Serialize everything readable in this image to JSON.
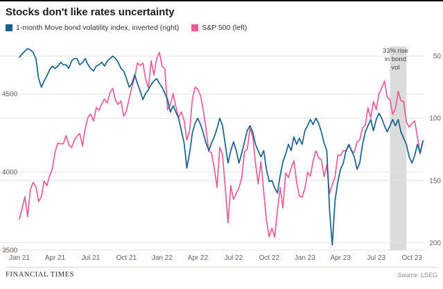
{
  "title": "Stocks don't like rates uncertainty",
  "legend": [
    {
      "label": "1-month Move bond volatility index, inverted (right)",
      "color": "#15608c"
    },
    {
      "label": "S&P 500 (left)",
      "color": "#e85d96"
    }
  ],
  "footer": {
    "brand": "FINANCIAL TIMES",
    "source": "Source: LSEG"
  },
  "chart_data": {
    "type": "line",
    "title": "Stocks don't like rates uncertainty",
    "x_tick_labels": [
      {
        "index": 0,
        "label": "Jan 21"
      },
      {
        "index": 13,
        "label": "Apr 21"
      },
      {
        "index": 26,
        "label": "Jul 21"
      },
      {
        "index": 39,
        "label": "Oct 21"
      },
      {
        "index": 52,
        "label": "Jan 22"
      },
      {
        "index": 65,
        "label": "Apr 22"
      },
      {
        "index": 78,
        "label": "Jul 22"
      },
      {
        "index": 91,
        "label": "Oct 22"
      },
      {
        "index": 104,
        "label": "Jan 23"
      },
      {
        "index": 117,
        "label": "Apr 23"
      },
      {
        "index": 130,
        "label": "Jul 23"
      },
      {
        "index": 143,
        "label": "Oct 23"
      }
    ],
    "left_axis": {
      "ticks": [
        4500,
        4000,
        3500
      ],
      "min": 3500,
      "max": 4790,
      "direction": "up",
      "label_for": "S&P 500"
    },
    "right_axis": {
      "ticks": [
        50,
        100,
        150,
        200
      ],
      "min": 44,
      "max": 206,
      "direction": "down",
      "label_for": "Move index (inverted)"
    },
    "band": {
      "start_index": 135,
      "end_index": 141,
      "color": "#dbdbdb"
    },
    "annotation": {
      "anchor_index": 137,
      "text_lines": [
        "33% rise",
        "in bond",
        "vol"
      ]
    },
    "grid": {
      "color": "#e2e2e2"
    },
    "series": [
      {
        "name": "1-month Move bond volatility index, inverted",
        "axis": "right_axis",
        "color": "#15608c",
        "values": [
          51,
          48,
          46,
          44,
          45,
          47,
          52,
          68,
          75,
          70,
          66,
          61,
          58,
          60,
          58,
          55,
          57,
          57,
          60,
          54,
          52,
          52,
          57,
          55,
          52,
          57,
          60,
          62,
          58,
          57,
          55,
          58,
          54,
          52,
          50,
          52,
          55,
          60,
          62,
          68,
          75,
          72,
          65,
          72,
          78,
          85,
          80,
          77,
          73,
          70,
          68,
          72,
          75,
          80,
          85,
          95,
          90,
          95,
          100,
          110,
          120,
          140,
          128,
          112,
          104,
          100,
          105,
          112,
          120,
          126,
          120,
          115,
          108,
          100,
          106,
          121,
          136,
          126,
          119,
          126,
          136,
          128,
          119,
          110,
          106,
          111,
          121,
          126,
          131,
          126,
          141,
          151,
          150,
          156,
          160,
          146,
          135,
          129,
          121,
          126,
          115,
          121,
          116,
          121,
          110,
          106,
          101,
          105,
          100,
          104,
          111,
          120,
          126,
          174,
          202,
          166,
          151,
          141,
          136,
          126,
          121,
          126,
          131,
          141,
          136,
          121,
          111,
          106,
          101,
          110,
          101,
          96,
          100,
          106,
          111,
          106,
          101,
          106,
          101,
          111,
          116,
          121,
          131,
          136,
          130,
          121,
          128,
          118
        ]
      },
      {
        "name": "S&P 500",
        "axis": "left_axis",
        "color": "#e85d96",
        "values": [
          3700,
          3768,
          3841,
          3714,
          3886,
          3934,
          3906,
          3811,
          3842,
          3943,
          3913,
          3975,
          4019,
          4129,
          4185,
          4180,
          4181,
          4233,
          4174,
          4156,
          4204,
          4230,
          4247,
          4166,
          4281,
          4352,
          4370,
          4327,
          4412,
          4395,
          4437,
          4468,
          4442,
          4509,
          4535,
          4459,
          4433,
          4455,
          4357,
          4391,
          4471,
          4545,
          4605,
          4698,
          4683,
          4698,
          4595,
          4538,
          4712,
          4621,
          4726,
          4766,
          4677,
          4663,
          4398,
          4432,
          4501,
          4419,
          4349,
          4385,
          4329,
          4204,
          4263,
          4463,
          4543,
          4530,
          4488,
          4393,
          4272,
          4132,
          4123,
          4024,
          3901,
          4158,
          4109,
          3901,
          3675,
          3912,
          3825,
          3863,
          3899,
          3962,
          4130,
          4145,
          4280,
          4228,
          4058,
          3924,
          4067,
          3873,
          3693,
          3586,
          3640,
          3583,
          3753,
          3901,
          3771,
          3993,
          3965,
          4026,
          4072,
          3934,
          3845,
          3839,
          3895,
          3999,
          3973,
          4071,
          4136,
          4090,
          4079,
          3970,
          4046,
          3862,
          3917,
          3971,
          4109,
          4105,
          4138,
          4134,
          4169,
          4136,
          4124,
          4192,
          4205,
          4282,
          4299,
          4410,
          4348,
          4450,
          4399,
          4505,
          4536,
          4582,
          4478,
          4464,
          4370,
          4406,
          4516,
          4457,
          4450,
          4320,
          4288,
          4309,
          4328,
          4224,
          4117,
          4194
        ]
      }
    ]
  }
}
